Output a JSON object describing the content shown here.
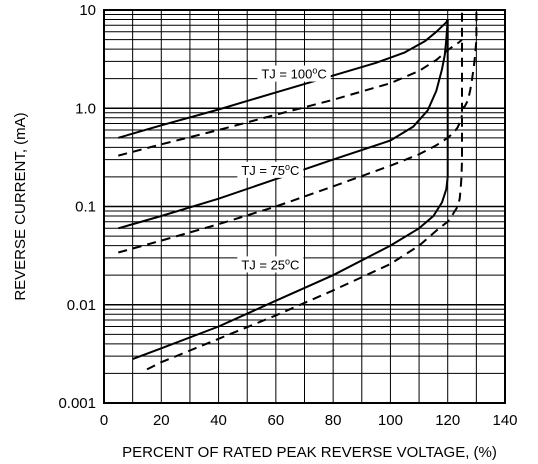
{
  "chart_data": {
    "type": "line",
    "title": "",
    "xlabel": "PERCENT OF RATED PEAK REVERSE VOLTAGE, (%)",
    "ylabel": "REVERSE CURRENT, (mA)",
    "xlim": [
      0,
      140
    ],
    "ylim": [
      0.001,
      10
    ],
    "yscale": "log",
    "grid": true,
    "x_ticks": [
      "0",
      "20",
      "40",
      "60",
      "80",
      "100",
      "120",
      "140"
    ],
    "y_ticks": [
      "0.001",
      "0.01",
      "0.1",
      "1.0",
      "10"
    ],
    "annotations": [
      {
        "text": "TJ = 100",
        "sup": "o",
        "tail": "C",
        "x": 71,
        "y": 2.1
      },
      {
        "text": "TJ = 75",
        "sup": "o",
        "tail": "C",
        "x": 64,
        "y": 0.22
      },
      {
        "text": "TJ = 25",
        "sup": "o",
        "tail": "C",
        "x": 64,
        "y": 0.024
      }
    ],
    "series": [
      {
        "style": "solid",
        "x": [
          5,
          20,
          40,
          60,
          80,
          95,
          105,
          112,
          116,
          119.5,
          120
        ],
        "y": [
          0.5,
          0.67,
          0.97,
          1.45,
          2.15,
          2.9,
          3.7,
          4.8,
          6.0,
          7.5,
          8.0
        ]
      },
      {
        "style": "dashed",
        "x": [
          5,
          20,
          40,
          60,
          80,
          100,
          110,
          116,
          120,
          122,
          124,
          125
        ],
        "y": [
          0.33,
          0.43,
          0.6,
          0.86,
          1.22,
          1.8,
          2.4,
          3.1,
          3.9,
          4.3,
          4.7,
          5.0
        ]
      },
      {
        "style": "solid",
        "x": [
          5,
          20,
          40,
          60,
          80,
          100,
          108,
          113,
          116,
          118,
          119,
          119.5,
          119.8,
          120
        ],
        "y": [
          0.06,
          0.08,
          0.12,
          0.19,
          0.3,
          0.47,
          0.65,
          0.95,
          1.5,
          2.5,
          3.5,
          5.0,
          6.5,
          8.0
        ]
      },
      {
        "style": "dashed",
        "x": [
          5,
          20,
          40,
          60,
          80,
          100,
          110,
          116,
          120,
          122,
          123.5,
          124.5,
          125
        ],
        "y": [
          0.034,
          0.045,
          0.066,
          0.1,
          0.16,
          0.26,
          0.34,
          0.42,
          0.5,
          0.56,
          0.64,
          0.75,
          0.85
        ]
      },
      {
        "style": "solid",
        "x": [
          10,
          20,
          40,
          60,
          80,
          100,
          110,
          115,
          118,
          119.5,
          120,
          120,
          120
        ],
        "y": [
          0.0028,
          0.0036,
          0.006,
          0.011,
          0.02,
          0.04,
          0.06,
          0.08,
          0.11,
          0.15,
          0.2,
          1.0,
          8.0
        ]
      },
      {
        "style": "dashed",
        "x": [
          15,
          20,
          40,
          60,
          80,
          100,
          110,
          117,
          120,
          122,
          123.5,
          124.2,
          124.5,
          124.8,
          125,
          125
        ],
        "y": [
          0.0022,
          0.0026,
          0.0045,
          0.0078,
          0.014,
          0.026,
          0.04,
          0.06,
          0.07,
          0.085,
          0.1,
          0.12,
          0.15,
          0.2,
          0.3,
          10
        ]
      },
      {
        "style": "dashed",
        "x": [
          125,
          126,
          127,
          127.8,
          128.4,
          129,
          129.5,
          130,
          130,
          130
        ],
        "y": [
          1.0,
          1.05,
          1.2,
          1.5,
          1.9,
          2.5,
          3.3,
          5.0,
          7.0,
          10
        ]
      }
    ]
  }
}
